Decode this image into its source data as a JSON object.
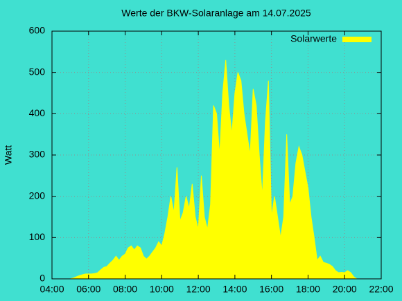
{
  "chart_data": {
    "type": "area",
    "title": "Werte der BKW-Solaranlage am 14.07.2025",
    "y_label": "Watt",
    "x": [
      300,
      310,
      320,
      330,
      340,
      350,
      360,
      370,
      380,
      390,
      400,
      410,
      420,
      430,
      440,
      450,
      460,
      470,
      480,
      490,
      500,
      510,
      520,
      530,
      540,
      550,
      560,
      570,
      580,
      590,
      600,
      610,
      620,
      630,
      640,
      650,
      660,
      670,
      680,
      690,
      700,
      710,
      720,
      730,
      740,
      750,
      760,
      770,
      780,
      790,
      800,
      810,
      820,
      830,
      840,
      850,
      860,
      870,
      880,
      890,
      900,
      910,
      920,
      930,
      940,
      950,
      960,
      970,
      980,
      990,
      1000,
      1010,
      1020,
      1030,
      1040,
      1050,
      1060,
      1070,
      1080,
      1090,
      1100,
      1110,
      1120,
      1130,
      1140,
      1150,
      1160,
      1170,
      1180,
      1190,
      1200,
      1210,
      1220,
      1230,
      1240
    ],
    "series": [
      {
        "name": "Solarwerte",
        "color": "#ffff00",
        "values": [
          0,
          2,
          5,
          8,
          10,
          12,
          12,
          12,
          13,
          15,
          22,
          28,
          30,
          38,
          45,
          55,
          45,
          55,
          60,
          75,
          80,
          70,
          80,
          75,
          55,
          48,
          55,
          65,
          75,
          90,
          80,
          110,
          150,
          200,
          160,
          270,
          140,
          160,
          200,
          170,
          230,
          150,
          120,
          250,
          150,
          120,
          180,
          420,
          400,
          300,
          450,
          530,
          420,
          350,
          450,
          500,
          480,
          400,
          350,
          300,
          460,
          420,
          300,
          200,
          380,
          480,
          150,
          200,
          150,
          100,
          150,
          350,
          180,
          200,
          280,
          320,
          300,
          260,
          220,
          150,
          100,
          45,
          55,
          40,
          38,
          35,
          30,
          20,
          15,
          16,
          15,
          20,
          15,
          5,
          0
        ]
      }
    ],
    "xlim": [
      240,
      1320
    ],
    "xticks": [
      {
        "value": 240,
        "label": "04:00"
      },
      {
        "value": 360,
        "label": "06:00"
      },
      {
        "value": 480,
        "label": "08:00"
      },
      {
        "value": 600,
        "label": "10:00"
      },
      {
        "value": 720,
        "label": "12:00"
      },
      {
        "value": 840,
        "label": "14:00"
      },
      {
        "value": 960,
        "label": "16:00"
      },
      {
        "value": 1080,
        "label": "18:00"
      },
      {
        "value": 1200,
        "label": "20:00"
      },
      {
        "value": 1320,
        "label": "22:00"
      }
    ],
    "ylim": [
      0,
      600
    ],
    "yticks": [
      0,
      100,
      200,
      300,
      400,
      500,
      600
    ],
    "grid": true,
    "legend": "top-right"
  }
}
